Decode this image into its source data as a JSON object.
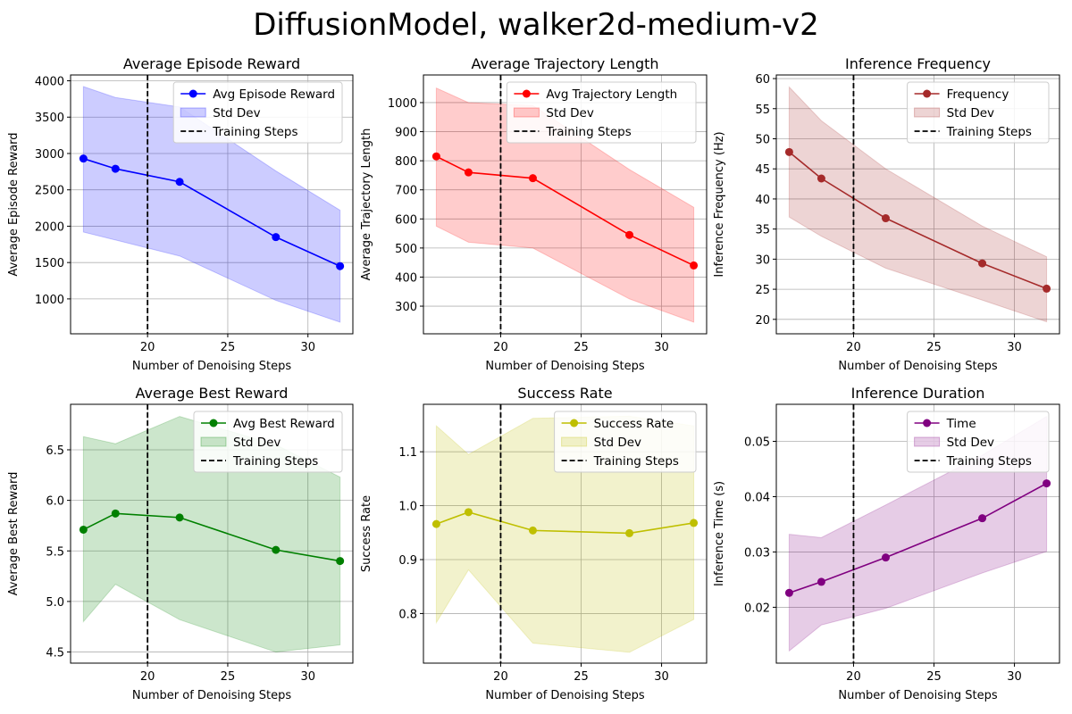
{
  "figure": {
    "title": "DiffusionModel, walker2d-medium-v2"
  },
  "chart_data": [
    {
      "type": "line",
      "title": "Average Episode Reward",
      "xlabel": "Number of Denoising Steps",
      "ylabel": "Average Episode Reward",
      "x": [
        16,
        18,
        22,
        28,
        32
      ],
      "xlim": [
        15.2,
        32.8
      ],
      "ylim": [
        520,
        4080
      ],
      "xticks": [
        20,
        25,
        30
      ],
      "yticks": [
        1000,
        1500,
        2000,
        2500,
        3000,
        3500,
        4000
      ],
      "grid": true,
      "legend_position": "top-right",
      "training_step": 20,
      "series": [
        {
          "name": "Avg Episode Reward",
          "values": [
            2930,
            2790,
            2610,
            1850,
            1450
          ],
          "std_upper": [
            3920,
            3770,
            3640,
            2760,
            2220
          ],
          "std_lower": [
            1920,
            1810,
            1590,
            980,
            680
          ]
        }
      ],
      "std_label": "Std Dev",
      "vline_label": "Training Steps",
      "colors": {
        "line": "#0000ff",
        "fill": "#0000ff"
      }
    },
    {
      "type": "line",
      "title": "Average Trajectory Length",
      "xlabel": "Number of Denoising Steps",
      "ylabel": "Average Trajectory Length",
      "x": [
        16,
        18,
        22,
        28,
        32
      ],
      "xlim": [
        15.2,
        32.8
      ],
      "ylim": [
        205,
        1095
      ],
      "xticks": [
        20,
        25,
        30
      ],
      "yticks": [
        300,
        400,
        500,
        600,
        700,
        800,
        900,
        1000
      ],
      "grid": true,
      "legend_position": "top-right",
      "training_step": 20,
      "series": [
        {
          "name": "Avg Trajectory Length",
          "values": [
            815,
            760,
            740,
            545,
            440
          ],
          "std_upper": [
            1050,
            1000,
            990,
            770,
            640
          ],
          "std_lower": [
            575,
            520,
            500,
            325,
            245
          ]
        }
      ],
      "std_label": "Std Dev",
      "vline_label": "Training Steps",
      "colors": {
        "line": "#ff0000",
        "fill": "#ff0000"
      }
    },
    {
      "type": "line",
      "title": "Inference Frequency",
      "xlabel": "Number of Denoising Steps",
      "ylabel": "Inference Frequency (Hz)",
      "x": [
        16,
        18,
        22,
        28,
        32
      ],
      "xlim": [
        15.2,
        32.8
      ],
      "ylim": [
        17.6,
        60.6
      ],
      "xticks": [
        20,
        25,
        30
      ],
      "yticks": [
        20,
        25,
        30,
        35,
        40,
        45,
        50,
        55,
        60
      ],
      "grid": true,
      "legend_position": "top-right",
      "training_step": 20,
      "series": [
        {
          "name": "Frequency",
          "values": [
            47.8,
            43.4,
            36.8,
            29.3,
            25.1
          ],
          "std_upper": [
            58.6,
            53.0,
            45.0,
            35.5,
            30.4
          ],
          "std_lower": [
            37.0,
            33.8,
            28.5,
            23.2,
            19.6
          ]
        }
      ],
      "std_label": "Std Dev",
      "vline_label": "Training Steps",
      "colors": {
        "line": "#a52a2a",
        "fill": "#a52a2a"
      }
    },
    {
      "type": "line",
      "title": "Average Best Reward",
      "xlabel": "Number of Denoising Steps",
      "ylabel": "Average Best Reward",
      "x": [
        16,
        18,
        22,
        28,
        32
      ],
      "xlim": [
        15.2,
        32.8
      ],
      "ylim": [
        4.39,
        6.95
      ],
      "xticks": [
        20,
        25,
        30
      ],
      "yticks": [
        4.5,
        5.0,
        5.5,
        6.0,
        6.5
      ],
      "ytick_labels": [
        "4.5",
        "5.0",
        "5.5",
        "6.0",
        "6.5"
      ],
      "grid": true,
      "legend_position": "top-right",
      "training_step": 20,
      "series": [
        {
          "name": "Avg Best Reward",
          "values": [
            5.71,
            5.87,
            5.83,
            5.51,
            5.4
          ],
          "std_upper": [
            6.63,
            6.56,
            6.83,
            6.55,
            6.23
          ],
          "std_lower": [
            4.8,
            5.17,
            4.82,
            4.5,
            4.57
          ]
        }
      ],
      "std_label": "Std Dev",
      "vline_label": "Training Steps",
      "colors": {
        "line": "#008000",
        "fill": "#008000"
      }
    },
    {
      "type": "line",
      "title": "Success Rate",
      "xlabel": "Number of Denoising Steps",
      "ylabel": "Success Rate",
      "x": [
        16,
        18,
        22,
        28,
        32
      ],
      "xlim": [
        15.2,
        32.8
      ],
      "ylim": [
        0.708,
        1.188
      ],
      "xticks": [
        20,
        25,
        30
      ],
      "yticks": [
        0.8,
        0.9,
        1.0,
        1.1
      ],
      "ytick_labels": [
        "0.8",
        "0.9",
        "1.0",
        "1.1"
      ],
      "grid": true,
      "legend_position": "top-right",
      "training_step": 20,
      "series": [
        {
          "name": "Success Rate",
          "values": [
            0.966,
            0.988,
            0.954,
            0.949,
            0.968
          ],
          "std_upper": [
            1.148,
            1.095,
            1.162,
            1.166,
            1.148
          ],
          "std_lower": [
            0.783,
            0.881,
            0.745,
            0.728,
            0.789
          ]
        }
      ],
      "std_label": "Std Dev",
      "vline_label": "Training Steps",
      "colors": {
        "line": "#bfbf00",
        "fill": "#bfbf00"
      }
    },
    {
      "type": "line",
      "title": "Inference Duration",
      "xlabel": "Number of Denoising Steps",
      "ylabel": "Inference Time (s)",
      "x": [
        16,
        18,
        22,
        28,
        32
      ],
      "xlim": [
        15.2,
        32.8
      ],
      "ylim": [
        0.0099,
        0.0567
      ],
      "xticks": [
        20,
        25,
        30
      ],
      "yticks": [
        0.02,
        0.03,
        0.04,
        0.05
      ],
      "ytick_labels": [
        "0.02",
        "0.03",
        "0.04",
        "0.05"
      ],
      "grid": true,
      "legend_position": "top-right",
      "training_step": 20,
      "series": [
        {
          "name": "Time",
          "values": [
            0.0226,
            0.0246,
            0.029,
            0.0361,
            0.0424
          ],
          "std_upper": [
            0.0332,
            0.0326,
            0.0385,
            0.0475,
            0.0545
          ],
          "std_lower": [
            0.0121,
            0.0168,
            0.0198,
            0.0262,
            0.0301
          ]
        }
      ],
      "std_label": "Std Dev",
      "vline_label": "Training Steps",
      "colors": {
        "line": "#800080",
        "fill": "#800080"
      }
    }
  ]
}
